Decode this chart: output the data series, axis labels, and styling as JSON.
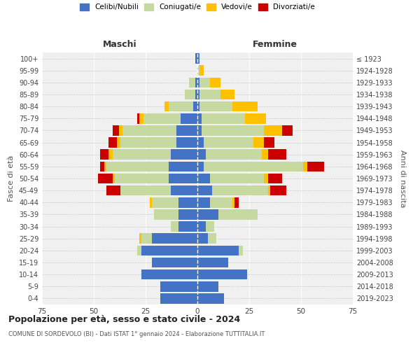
{
  "age_groups": [
    "0-4",
    "5-9",
    "10-14",
    "15-19",
    "20-24",
    "25-29",
    "30-34",
    "35-39",
    "40-44",
    "45-49",
    "50-54",
    "55-59",
    "60-64",
    "65-69",
    "70-74",
    "75-79",
    "80-84",
    "85-89",
    "90-94",
    "95-99",
    "100+"
  ],
  "birth_years": [
    "2019-2023",
    "2014-2018",
    "2009-2013",
    "2004-2008",
    "1999-2003",
    "1994-1998",
    "1989-1993",
    "1984-1988",
    "1979-1983",
    "1974-1978",
    "1969-1973",
    "1964-1968",
    "1959-1963",
    "1954-1958",
    "1949-1953",
    "1944-1948",
    "1939-1943",
    "1934-1938",
    "1929-1933",
    "1924-1928",
    "≤ 1923"
  ],
  "males": {
    "celibi": [
      18,
      18,
      27,
      22,
      27,
      22,
      9,
      9,
      9,
      13,
      14,
      14,
      13,
      10,
      10,
      8,
      2,
      1,
      1,
      0,
      1
    ],
    "coniugati": [
      0,
      0,
      0,
      0,
      2,
      5,
      4,
      12,
      13,
      24,
      26,
      30,
      28,
      27,
      26,
      18,
      12,
      5,
      3,
      0,
      0
    ],
    "vedovi": [
      0,
      0,
      0,
      0,
      0,
      1,
      0,
      0,
      1,
      0,
      1,
      1,
      2,
      2,
      2,
      2,
      2,
      0,
      0,
      0,
      0
    ],
    "divorziati": [
      0,
      0,
      0,
      0,
      0,
      0,
      0,
      0,
      0,
      7,
      7,
      2,
      4,
      4,
      3,
      1,
      0,
      0,
      0,
      0,
      0
    ]
  },
  "females": {
    "nubili": [
      13,
      10,
      24,
      15,
      20,
      5,
      4,
      10,
      6,
      7,
      6,
      3,
      4,
      3,
      2,
      2,
      1,
      1,
      1,
      0,
      1
    ],
    "coniugate": [
      0,
      0,
      0,
      0,
      2,
      4,
      4,
      19,
      11,
      27,
      26,
      48,
      27,
      24,
      30,
      21,
      16,
      10,
      5,
      1,
      0
    ],
    "vedove": [
      0,
      0,
      0,
      0,
      0,
      0,
      0,
      0,
      1,
      1,
      2,
      2,
      3,
      5,
      9,
      10,
      12,
      7,
      5,
      2,
      0
    ],
    "divorziate": [
      0,
      0,
      0,
      0,
      0,
      0,
      0,
      0,
      2,
      8,
      7,
      8,
      9,
      5,
      5,
      0,
      0,
      0,
      0,
      0,
      0
    ]
  },
  "colors": {
    "celibi": "#4472c4",
    "coniugati": "#c5d9a0",
    "vedovi": "#ffc000",
    "divorziati": "#cc0000"
  },
  "title": "Popolazione per età, sesso e stato civile - 2024",
  "subtitle": "COMUNE DI SORDEVOLO (BI) - Dati ISTAT 1° gennaio 2024 - Elaborazione TUTTITALIA.IT",
  "xlabel_left": "Maschi",
  "xlabel_right": "Femmine",
  "ylabel_left": "Fasce di età",
  "ylabel_right": "Anni di nascita",
  "xlim": 75,
  "legend_labels": [
    "Celibi/Nubili",
    "Coniugati/e",
    "Vedovi/e",
    "Divorziati/e"
  ],
  "background_color": "#ffffff",
  "grid_color": "#cccccc"
}
